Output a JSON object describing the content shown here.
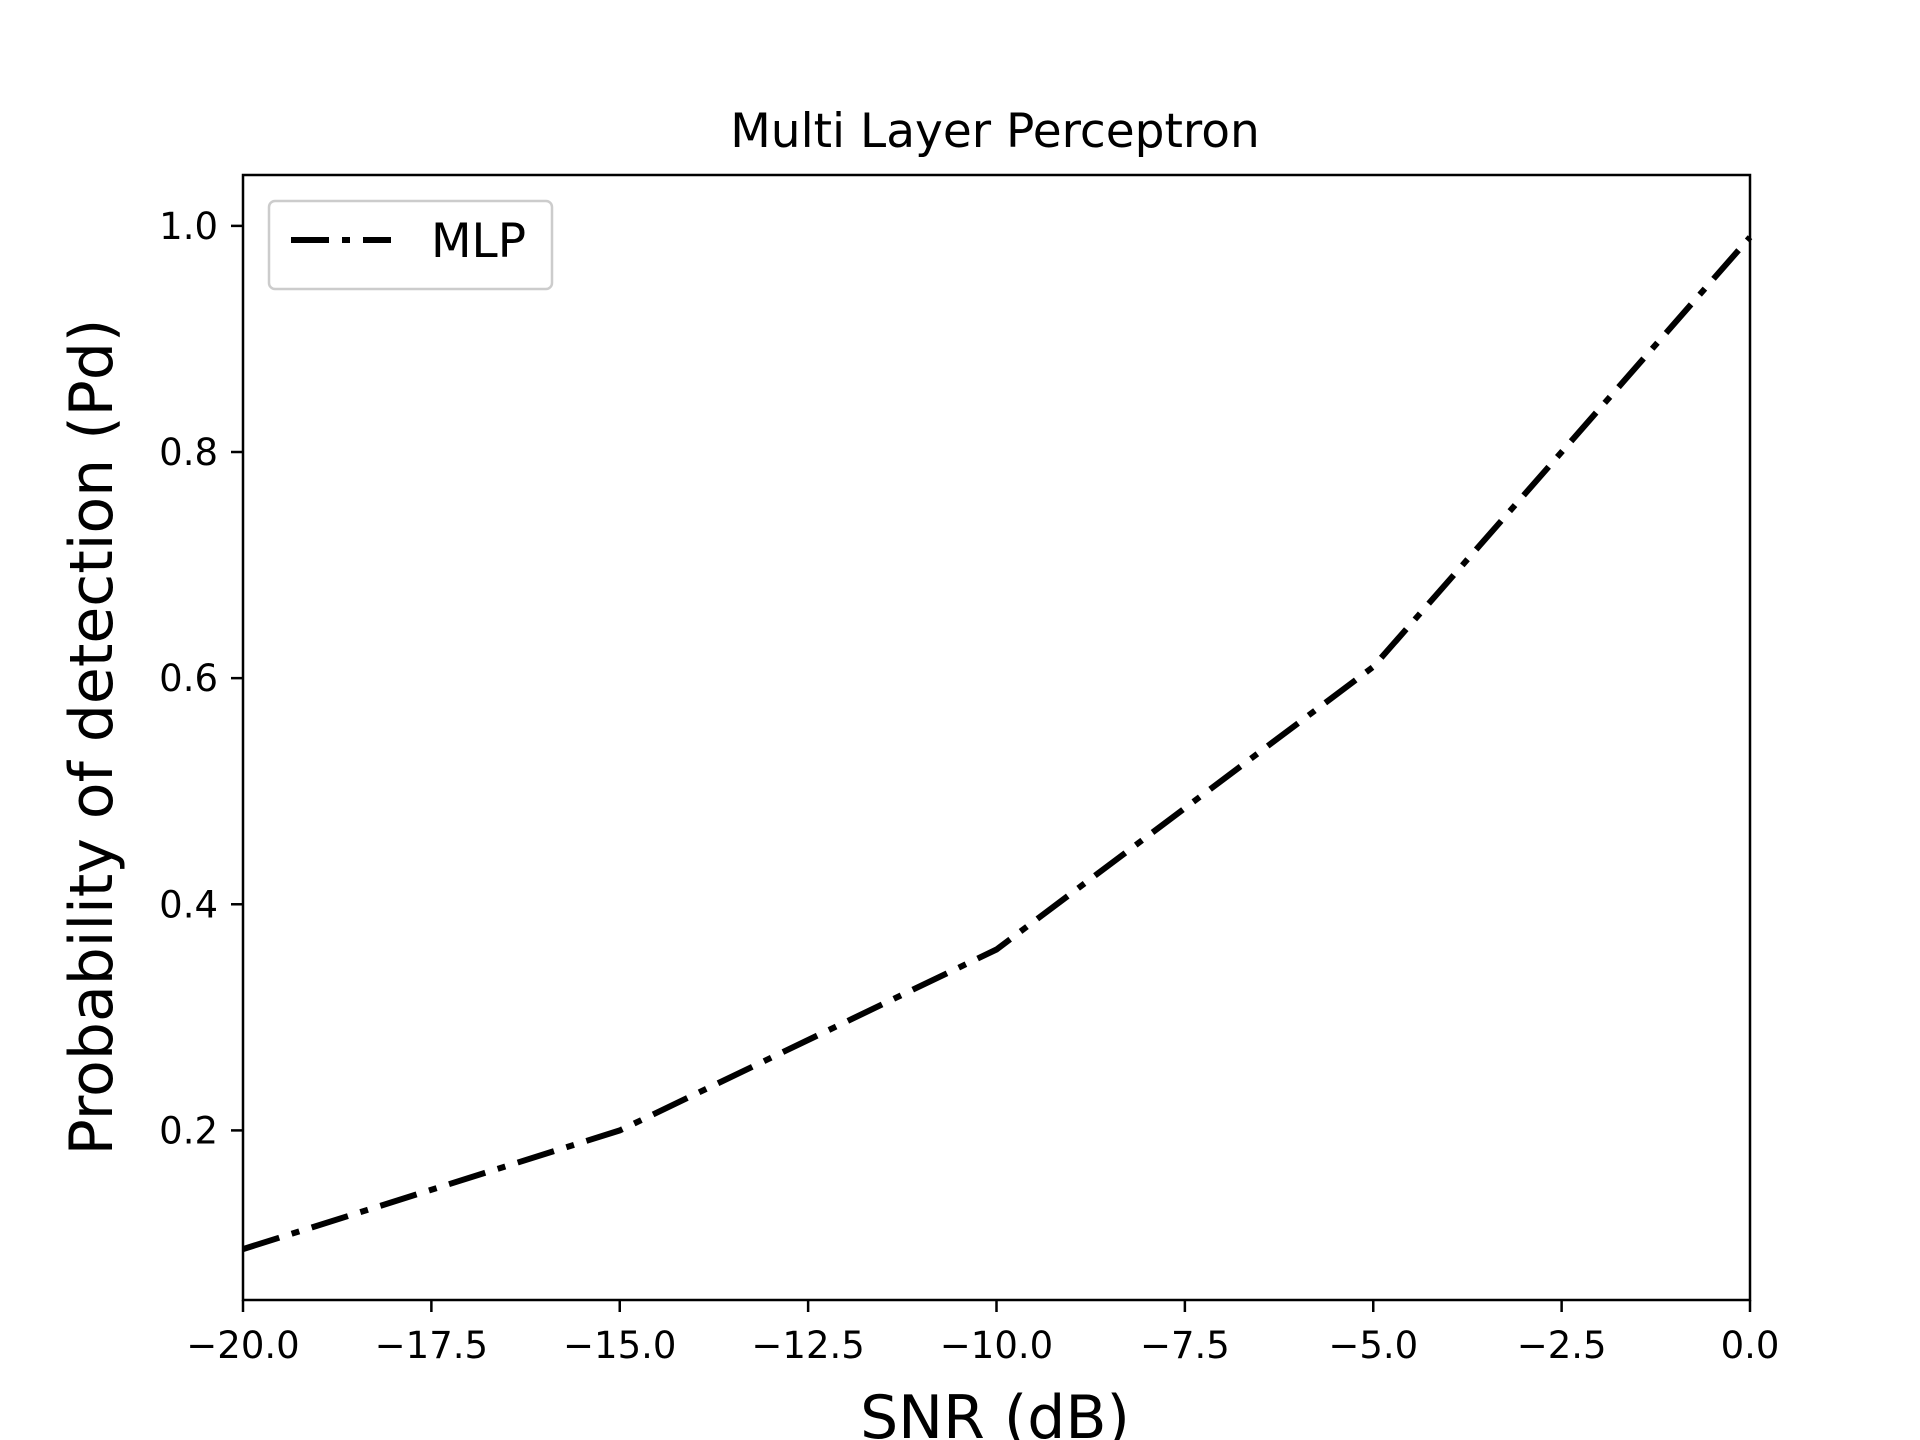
{
  "chart_data": {
    "type": "line",
    "title": "Multi Layer Perceptron",
    "xlabel": "SNR (dB)",
    "ylabel": "Probability of detection (Pd)",
    "xlim": [
      -20.0,
      0.0
    ],
    "ylim": [
      0.05,
      1.045
    ],
    "x_ticks": [
      -20.0,
      -17.5,
      -15.0,
      -12.5,
      -10.0,
      -7.5,
      -5.0,
      -2.5,
      0.0
    ],
    "x_tick_labels": [
      "−20.0",
      "−17.5",
      "−15.0",
      "−12.5",
      "−10.0",
      "−7.5",
      "−5.0",
      "−2.5",
      "0.0"
    ],
    "y_ticks": [
      0.2,
      0.4,
      0.6,
      0.8,
      1.0
    ],
    "y_tick_labels": [
      "0.2",
      "0.4",
      "0.6",
      "0.8",
      "1.0"
    ],
    "grid": false,
    "legend": {
      "position": "top-left"
    },
    "series": [
      {
        "name": "MLP",
        "color": "#000000",
        "line_style": "dash-dot",
        "x": [
          -20,
          -15,
          -10,
          -5,
          0
        ],
        "y": [
          0.095,
          0.2,
          0.36,
          0.61,
          0.99
        ]
      }
    ]
  }
}
